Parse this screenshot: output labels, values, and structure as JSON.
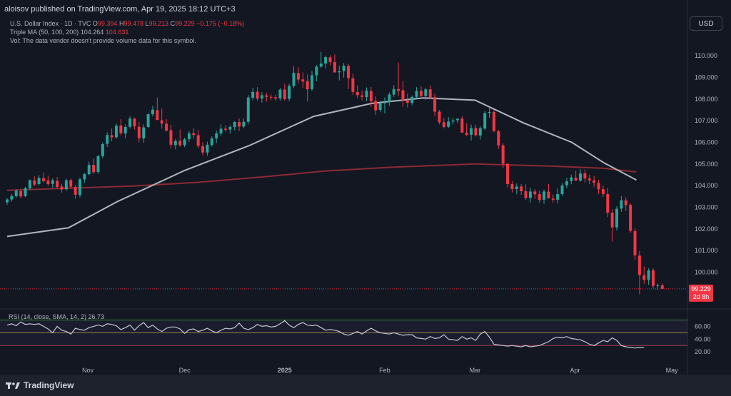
{
  "header": {
    "published": "aloisov published on TradingView.com, Apr 19, 2025 18:12 UTC+3",
    "currency_button": "USD",
    "symbol_line": {
      "name": "U.S. Dollar Index · 1D · TVC",
      "o_label": "O",
      "o_value": "99.394",
      "h_label": "H",
      "h_value": "99.478",
      "l_label": "L",
      "l_value": "99.213",
      "c_label": "C",
      "c_value": "99.229",
      "change": "−0.175 (−0.18%)"
    },
    "ma_line": {
      "name": "Triple MA (50, 100, 200)",
      "v1": "104.264",
      "v2": "104.631"
    },
    "vol_line": "Vol: The data vendor doesn't provide volume data for this symbol."
  },
  "footer": {
    "brand": "TradingView"
  },
  "colors": {
    "bg": "#131722",
    "up": "#26a69a",
    "down": "#f23645",
    "ma50": "#b2b5be",
    "ma200": "#8b2a33",
    "rsi": "#c5c8d0"
  },
  "chart_data": {
    "type": "candlestick",
    "symbol": "U.S. Dollar Index · 1D · TVC",
    "ylim": [
      98.4,
      110.6
    ],
    "yticks": [
      "110.000",
      "109.000",
      "108.000",
      "107.000",
      "106.000",
      "105.000",
      "104.000",
      "103.000",
      "102.000",
      "101.000",
      "100.000"
    ],
    "xticks": [
      {
        "label": "Nov",
        "day": 26
      },
      {
        "label": "Dec",
        "day": 56
      },
      {
        "label": "2025",
        "day": 87
      },
      {
        "label": "Feb",
        "day": 118
      },
      {
        "label": "Mar",
        "day": 146
      },
      {
        "label": "Apr",
        "day": 177
      },
      {
        "label": "May",
        "day": 207
      }
    ],
    "last_price": "99.229",
    "countdown": "2d 8h",
    "candles_ohlc": [
      [
        103.23,
        103.42,
        103.12,
        103.36
      ],
      [
        103.36,
        103.61,
        103.26,
        103.52
      ],
      [
        103.51,
        103.83,
        103.45,
        103.77
      ],
      [
        103.74,
        103.86,
        103.41,
        103.5
      ],
      [
        103.52,
        103.95,
        103.47,
        103.88
      ],
      [
        103.87,
        104.29,
        103.8,
        104.25
      ],
      [
        104.24,
        104.43,
        103.97,
        104.05
      ],
      [
        104.07,
        104.49,
        104.01,
        104.36
      ],
      [
        104.34,
        104.61,
        104.14,
        104.21
      ],
      [
        104.24,
        104.46,
        103.98,
        104.07
      ],
      [
        104.08,
        104.34,
        103.9,
        104.25
      ],
      [
        104.22,
        104.4,
        103.85,
        103.94
      ],
      [
        103.96,
        104.08,
        103.68,
        103.82
      ],
      [
        103.83,
        104.32,
        103.76,
        104.25
      ],
      [
        104.26,
        104.32,
        103.85,
        103.95
      ],
      [
        103.94,
        104.03,
        103.4,
        103.58
      ],
      [
        103.57,
        104.37,
        103.46,
        104.29
      ],
      [
        104.29,
        104.59,
        104.13,
        104.53
      ],
      [
        104.53,
        105.11,
        104.47,
        104.96
      ],
      [
        104.96,
        105.25,
        104.55,
        104.62
      ],
      [
        104.63,
        105.42,
        104.55,
        105.36
      ],
      [
        105.36,
        106.0,
        105.26,
        105.92
      ],
      [
        105.93,
        106.46,
        105.78,
        106.34
      ],
      [
        106.33,
        106.64,
        106.05,
        106.23
      ],
      [
        106.24,
        106.88,
        106.16,
        106.77
      ],
      [
        106.78,
        107.08,
        106.33,
        106.42
      ],
      [
        106.41,
        106.83,
        106.19,
        106.71
      ],
      [
        106.72,
        107.21,
        106.64,
        107.1
      ],
      [
        107.09,
        107.14,
        106.59,
        106.74
      ],
      [
        106.72,
        106.95,
        106.0,
        106.19
      ],
      [
        106.18,
        106.84,
        105.98,
        106.69
      ],
      [
        106.71,
        107.34,
        106.68,
        107.3
      ],
      [
        107.3,
        107.69,
        107.2,
        107.51
      ],
      [
        107.49,
        108.08,
        107.41,
        107.03
      ],
      [
        107.02,
        107.57,
        106.64,
        106.87
      ],
      [
        106.86,
        107.09,
        106.51,
        106.54
      ],
      [
        106.56,
        106.82,
        105.73,
        105.89
      ],
      [
        105.87,
        106.15,
        105.67,
        106.06
      ],
      [
        106.07,
        106.59,
        105.8,
        105.86
      ],
      [
        105.87,
        106.21,
        105.78,
        106.14
      ],
      [
        106.15,
        106.53,
        106.01,
        106.42
      ],
      [
        106.42,
        106.64,
        106.17,
        106.34
      ],
      [
        106.33,
        106.56,
        105.72,
        105.84
      ],
      [
        105.82,
        106.01,
        105.4,
        105.53
      ],
      [
        105.53,
        106.03,
        105.38,
        105.89
      ],
      [
        105.88,
        106.28,
        105.8,
        106.18
      ],
      [
        106.18,
        106.55,
        105.96,
        106.41
      ],
      [
        106.41,
        106.83,
        106.29,
        106.63
      ],
      [
        106.63,
        106.8,
        106.48,
        106.58
      ],
      [
        106.59,
        106.79,
        106.4,
        106.71
      ],
      [
        106.71,
        106.98,
        106.56,
        106.94
      ],
      [
        106.94,
        107.1,
        106.52,
        106.73
      ],
      [
        106.73,
        107.1,
        106.65,
        106.95
      ],
      [
        106.95,
        108.19,
        106.83,
        108.07
      ],
      [
        108.06,
        108.51,
        107.95,
        108.33
      ],
      [
        108.34,
        108.55,
        107.93,
        108.02
      ],
      [
        108.03,
        108.32,
        107.84,
        108.18
      ],
      [
        108.17,
        108.29,
        107.88,
        108.1
      ],
      [
        108.1,
        108.22,
        107.95,
        108.07
      ],
      [
        108.08,
        108.21,
        107.91,
        108.03
      ],
      [
        108.03,
        108.52,
        107.93,
        108.43
      ],
      [
        108.44,
        108.7,
        107.92,
        108.0
      ],
      [
        108.01,
        108.71,
        107.9,
        108.61
      ],
      [
        108.61,
        109.51,
        108.5,
        109.21
      ],
      [
        109.2,
        109.47,
        108.74,
        108.9
      ],
      [
        108.91,
        109.23,
        108.51,
        108.81
      ],
      [
        108.83,
        109.13,
        107.89,
        108.45
      ],
      [
        108.46,
        109.31,
        108.38,
        109.1
      ],
      [
        109.1,
        109.57,
        108.83,
        109.5
      ],
      [
        109.5,
        110.18,
        109.45,
        109.64
      ],
      [
        109.64,
        110.01,
        109.42,
        109.94
      ],
      [
        109.93,
        110.02,
        109.56,
        109.71
      ],
      [
        109.71,
        110.06,
        109.38,
        109.23
      ],
      [
        109.24,
        109.55,
        108.86,
        109.28
      ],
      [
        109.3,
        109.67,
        108.99,
        109.54
      ],
      [
        109.54,
        109.63,
        108.46,
        108.97
      ],
      [
        108.96,
        109.17,
        108.2,
        108.33
      ],
      [
        108.33,
        108.64,
        108.04,
        108.18
      ],
      [
        108.17,
        108.39,
        107.93,
        108.1
      ],
      [
        108.09,
        108.54,
        107.9,
        108.39
      ],
      [
        108.37,
        108.56,
        107.65,
        107.9
      ],
      [
        107.91,
        108.12,
        107.27,
        107.48
      ],
      [
        107.5,
        107.91,
        107.39,
        107.8
      ],
      [
        107.8,
        108.08,
        107.34,
        107.86
      ],
      [
        107.85,
        108.31,
        107.69,
        108.21
      ],
      [
        108.21,
        108.64,
        108.1,
        108.46
      ],
      [
        108.46,
        109.69,
        108.14,
        108.38
      ],
      [
        108.41,
        108.84,
        107.64,
        107.95
      ],
      [
        107.93,
        108.25,
        107.61,
        107.83
      ],
      [
        107.82,
        108.17,
        107.71,
        108.1
      ],
      [
        108.1,
        108.55,
        108.03,
        108.38
      ],
      [
        108.38,
        108.58,
        108.03,
        108.14
      ],
      [
        108.14,
        108.52,
        107.97,
        108.45
      ],
      [
        108.45,
        108.63,
        108.01,
        108.08
      ],
      [
        108.09,
        108.24,
        107.21,
        107.42
      ],
      [
        107.42,
        107.5,
        106.83,
        106.93
      ],
      [
        106.93,
        107.13,
        106.65,
        106.71
      ],
      [
        106.72,
        107.17,
        106.67,
        106.96
      ],
      [
        106.96,
        107.13,
        106.82,
        107.01
      ],
      [
        107.02,
        107.11,
        106.89,
        107.09
      ],
      [
        107.1,
        107.21,
        106.66,
        106.45
      ],
      [
        106.44,
        106.88,
        106.29,
        106.35
      ],
      [
        106.35,
        106.82,
        106.09,
        106.66
      ],
      [
        106.66,
        106.82,
        106.27,
        106.33
      ],
      [
        106.32,
        106.75,
        106.13,
        106.65
      ],
      [
        106.64,
        107.46,
        106.57,
        107.35
      ],
      [
        107.36,
        107.63,
        107.14,
        107.4
      ],
      [
        107.4,
        107.49,
        106.47,
        106.52
      ],
      [
        106.52,
        106.57,
        105.7,
        105.86
      ],
      [
        105.86,
        105.96,
        104.81,
        105.01
      ],
      [
        105.01,
        105.05,
        103.92,
        104.07
      ],
      [
        104.07,
        104.21,
        103.68,
        103.84
      ],
      [
        103.84,
        104.1,
        103.6,
        103.96
      ],
      [
        103.96,
        104.08,
        103.56,
        103.74
      ],
      [
        103.74,
        104.06,
        103.34,
        103.43
      ],
      [
        103.43,
        103.9,
        103.21,
        103.73
      ],
      [
        103.73,
        103.84,
        103.39,
        103.6
      ],
      [
        103.61,
        103.77,
        103.21,
        103.34
      ],
      [
        103.35,
        103.82,
        103.16,
        103.73
      ],
      [
        103.72,
        104.08,
        103.58,
        103.41
      ],
      [
        103.4,
        103.59,
        103.22,
        103.35
      ],
      [
        103.35,
        103.87,
        103.17,
        103.61
      ],
      [
        103.61,
        104.12,
        103.53,
        104.01
      ],
      [
        104.02,
        104.35,
        103.88,
        104.2
      ],
      [
        104.21,
        104.51,
        104.06,
        104.38
      ],
      [
        104.37,
        104.68,
        104.27,
        104.23
      ],
      [
        104.23,
        104.76,
        104.18,
        104.56
      ],
      [
        104.57,
        104.74,
        104.14,
        104.33
      ],
      [
        104.33,
        104.51,
        104.07,
        104.24
      ],
      [
        104.24,
        104.45,
        103.93,
        104.13
      ],
      [
        104.13,
        104.27,
        103.62,
        103.83
      ],
      [
        103.84,
        103.99,
        103.48,
        103.61
      ],
      [
        103.61,
        103.89,
        102.54,
        102.75
      ],
      [
        102.75,
        102.91,
        101.42,
        102.07
      ],
      [
        102.07,
        103.05,
        101.93,
        102.93
      ],
      [
        102.94,
        103.52,
        102.79,
        103.32
      ],
      [
        103.32,
        103.45,
        102.84,
        103.1
      ],
      [
        103.11,
        103.18,
        101.83,
        101.91
      ],
      [
        101.9,
        102.02,
        100.58,
        100.78
      ],
      [
        100.77,
        100.98,
        98.98,
        99.87
      ],
      [
        99.86,
        100.27,
        99.46,
        99.65
      ],
      [
        99.65,
        100.18,
        99.42,
        100.08
      ],
      [
        100.09,
        100.17,
        99.26,
        99.37
      ],
      [
        99.37,
        99.47,
        99.18,
        99.4
      ],
      [
        99.39,
        99.48,
        99.21,
        99.23
      ]
    ],
    "x_first_day": 1,
    "x_day_per_candle": 1.41,
    "ma50": [
      [
        1,
        101.65
      ],
      [
        20,
        102.05
      ],
      [
        35,
        103.25
      ],
      [
        56,
        104.7
      ],
      [
        76,
        105.85
      ],
      [
        96,
        107.2
      ],
      [
        114,
        107.8
      ],
      [
        130,
        108.05
      ],
      [
        146,
        107.95
      ],
      [
        161,
        106.9
      ],
      [
        176,
        106.0
      ],
      [
        186,
        105.05
      ],
      [
        196,
        104.264
      ]
    ],
    "ma200": [
      [
        1,
        103.78
      ],
      [
        20,
        103.88
      ],
      [
        40,
        103.98
      ],
      [
        60,
        104.15
      ],
      [
        80,
        104.4
      ],
      [
        100,
        104.68
      ],
      [
        120,
        104.85
      ],
      [
        146,
        105.0
      ],
      [
        170,
        104.9
      ],
      [
        186,
        104.8
      ],
      [
        196,
        104.631
      ]
    ],
    "rsi": {
      "label": "RSI (14, close, SMA, 14, 2)",
      "value": "26.73",
      "ylim": [
        18,
        75
      ],
      "levels": [
        70,
        50,
        30
      ],
      "ticks": [
        "60.00",
        "40.00",
        "20.00"
      ],
      "series": [
        62,
        64,
        61,
        67,
        63,
        64,
        63,
        64,
        60,
        56,
        50,
        60,
        54,
        52,
        48,
        57,
        55,
        54,
        58,
        60,
        62,
        60,
        64,
        63,
        61,
        55,
        58,
        62,
        54,
        61,
        66,
        58,
        62,
        56,
        52,
        57,
        59,
        59,
        56,
        49,
        55,
        56,
        52,
        54,
        57,
        53,
        50,
        54,
        57,
        56,
        58,
        65,
        57,
        55,
        58,
        63,
        60,
        61,
        59,
        60,
        64,
        69,
        62,
        58,
        63,
        66,
        62,
        61,
        62,
        58,
        54,
        55,
        54,
        52,
        48,
        46,
        49,
        52,
        48,
        53,
        57,
        53,
        50,
        49,
        48,
        50,
        48,
        46,
        47,
        47,
        42,
        41,
        40,
        44,
        41,
        42,
        47,
        40,
        39,
        38,
        44,
        40,
        42,
        38,
        48,
        52,
        43,
        32,
        31,
        30,
        29,
        30,
        29,
        28,
        30,
        28,
        29,
        30,
        33,
        36,
        41,
        43,
        42,
        44,
        41,
        40,
        39,
        36,
        32,
        30,
        34,
        38,
        36,
        42,
        38,
        30,
        28,
        27,
        26,
        27,
        26.73
      ]
    }
  }
}
